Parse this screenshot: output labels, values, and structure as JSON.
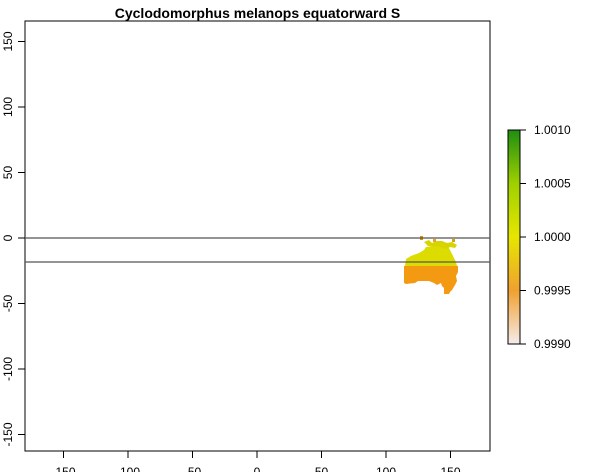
{
  "map": {
    "title": "Cyclodomorphus melanops equatorward S",
    "x_ticks": [
      "-150",
      "-100",
      "-50",
      "0",
      "50",
      "100",
      "150"
    ],
    "y_ticks": [
      "-150",
      "-100",
      "-50",
      "0",
      "50",
      "100",
      "150"
    ],
    "xlim": [
      -180,
      180
    ],
    "ylim": [
      -180,
      180
    ],
    "reference_lines": [
      {
        "name": "equator",
        "lat": 0
      },
      {
        "name": "latitude-line",
        "lat": -19
      }
    ],
    "region": "Australia",
    "colors": {
      "north_region": "#dcdc00",
      "south_region": "#f39a12",
      "edge": "#c9d800"
    }
  },
  "legend": {
    "labels": [
      "1.0010",
      "1.0005",
      "1.0000",
      "0.9995",
      "0.9990"
    ],
    "min": 0.999,
    "max": 1.001,
    "colors": {
      "top": "#1e8e10",
      "mid_high": "#9fd000",
      "mid": "#e6e600",
      "mid_low": "#f0a030",
      "bottom": "#f5ecec"
    }
  }
}
